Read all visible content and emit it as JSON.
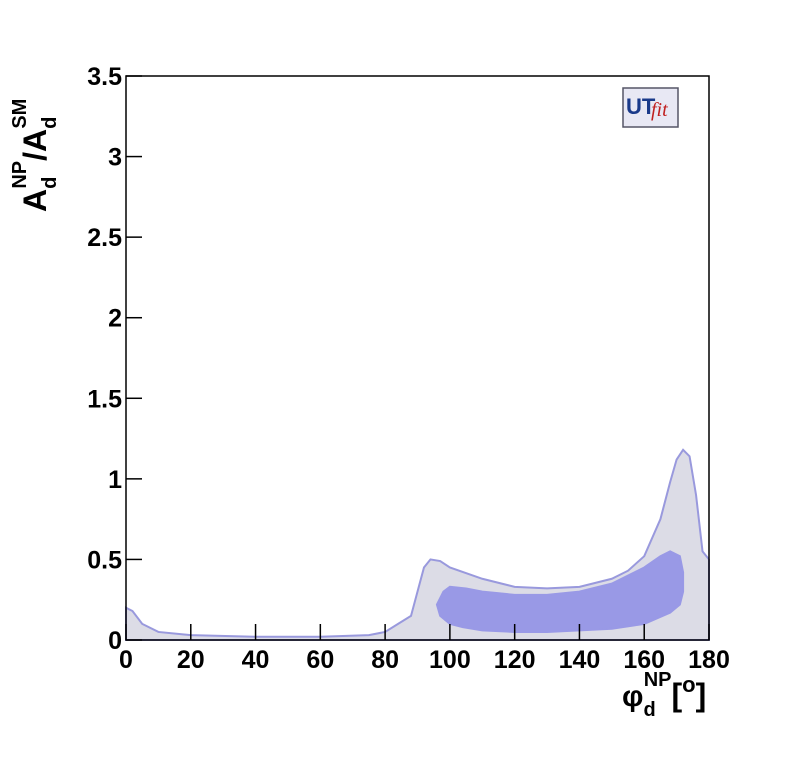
{
  "chart_data": {
    "type": "region",
    "logo": {
      "first": "UT",
      "second": "fit"
    },
    "xlabel": {
      "symbol": "φ",
      "sub": "d",
      "sup": "NP",
      "open": "[",
      "unit": "o",
      "close": "]"
    },
    "ylabel": {
      "num": "A",
      "num_sub": "d",
      "num_sup": "NP",
      "slash": "/A",
      "den_sub": "d",
      "den_sup": "SM"
    },
    "xlim": [
      0,
      180
    ],
    "ylim": [
      0,
      3.5
    ],
    "xticks": [
      0,
      20,
      40,
      60,
      80,
      100,
      120,
      140,
      160,
      180
    ],
    "yticks": [
      0,
      0.5,
      1,
      1.5,
      2,
      2.5,
      3,
      3.5
    ],
    "series": [
      {
        "color": "#dcdce6",
        "edge": "#9999dd",
        "x": [
          0,
          0,
          2,
          5,
          10,
          20,
          40,
          60,
          75,
          80,
          84,
          88,
          90,
          92,
          94,
          97,
          100,
          110,
          120,
          130,
          140,
          150,
          155,
          160,
          165,
          168,
          170,
          172,
          174,
          176,
          178,
          180,
          180
        ],
        "y": [
          0,
          0.2,
          0.18,
          0.1,
          0.05,
          0.03,
          0.02,
          0.02,
          0.03,
          0.05,
          0.1,
          0.15,
          0.3,
          0.45,
          0.5,
          0.49,
          0.45,
          0.38,
          0.33,
          0.32,
          0.33,
          0.38,
          0.43,
          0.52,
          0.75,
          0.98,
          1.12,
          1.18,
          1.14,
          0.9,
          0.55,
          0.5,
          0
        ]
      },
      {
        "color": "#9999e6",
        "edge": "#9999e6",
        "x": [
          96,
          98,
          100,
          105,
          110,
          120,
          130,
          140,
          150,
          160,
          165,
          168,
          171,
          172,
          172,
          171,
          168,
          160,
          150,
          140,
          130,
          120,
          110,
          104,
          100,
          97
        ],
        "y": [
          0.22,
          0.3,
          0.33,
          0.32,
          0.3,
          0.28,
          0.28,
          0.3,
          0.35,
          0.45,
          0.52,
          0.55,
          0.52,
          0.42,
          0.3,
          0.22,
          0.17,
          0.1,
          0.07,
          0.06,
          0.05,
          0.05,
          0.06,
          0.08,
          0.1,
          0.15
        ]
      }
    ]
  }
}
